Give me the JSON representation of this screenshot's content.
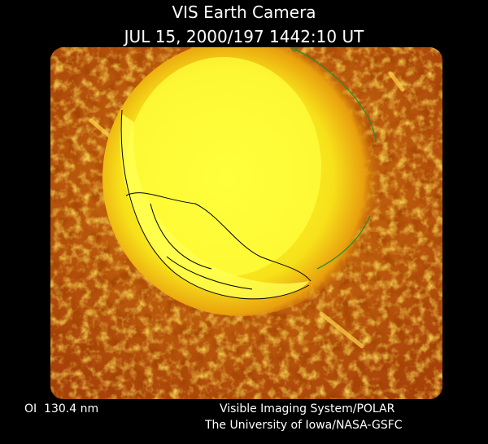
{
  "header": {
    "title": "VIS Earth Camera",
    "timestamp": "JUL 15, 2000/197 1442:10 UT"
  },
  "footer": {
    "wavelength": "OI  130.4 nm",
    "instrument": "Visible Imaging System/POLAR",
    "institution": "The University of Iowa/NASA-GSFC"
  }
}
